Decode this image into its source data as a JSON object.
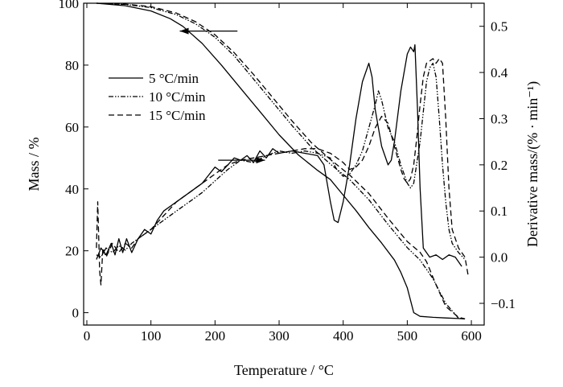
{
  "chart_data": {
    "type": "line",
    "xlabel": "Temperature / °C",
    "ylabel": "Mass / %",
    "y2label": "Derivative mass/(% · min⁻¹)",
    "xlim": [
      -5,
      620
    ],
    "ylim": [
      -4,
      100
    ],
    "y2lim": [
      -0.147,
      0.55
    ],
    "x_ticks": [
      "0",
      "100",
      "200",
      "300",
      "400",
      "500",
      "600"
    ],
    "y_ticks": [
      "0",
      "20",
      "40",
      "60",
      "80",
      "100"
    ],
    "y2_ticks": [
      "−0.1",
      "0.0",
      "0.1",
      "0.2",
      "0.3",
      "0.4",
      "0.5"
    ],
    "grid": false,
    "legend_position": "upper-left",
    "legend": [
      {
        "label": "5 °C/min",
        "style": "solid"
      },
      {
        "label": "10 °C/min",
        "style": "dashdotdot"
      },
      {
        "label": "15 °C/min",
        "style": "dashed"
      }
    ],
    "annotations": [
      {
        "axis": "left",
        "direction": "left",
        "from_x": 235,
        "to_x": 145,
        "y": 91
      },
      {
        "axis": "right",
        "direction": "right",
        "from_x": 205,
        "to_x": 278,
        "y2": 0.21
      }
    ],
    "series": [
      {
        "name": "5 °C/min",
        "kind": "mass",
        "axis": "left",
        "style": "solid",
        "x": [
          15,
          60,
          100,
          130,
          150,
          180,
          210,
          240,
          270,
          300,
          330,
          360,
          380,
          400,
          420,
          440,
          460,
          480,
          490,
          500,
          505,
          510,
          520,
          540,
          560,
          580,
          590
        ],
        "y": [
          100,
          99.2,
          97.5,
          95,
          92.5,
          87,
          80,
          72.5,
          65,
          57.5,
          51,
          46,
          43,
          38,
          33,
          27.5,
          22.5,
          17,
          13,
          8,
          4,
          0,
          -1.2,
          -1.5,
          -1.7,
          -1.9,
          -2
        ]
      },
      {
        "name": "10 °C/min",
        "kind": "mass",
        "axis": "left",
        "style": "dashdotdot",
        "x": [
          15,
          60,
          100,
          140,
          170,
          200,
          230,
          260,
          290,
          320,
          350,
          380,
          410,
          440,
          470,
          500,
          520,
          540,
          560,
          580,
          590
        ],
        "y": [
          100,
          99.6,
          98.6,
          96.3,
          93.3,
          89,
          83,
          75.5,
          68,
          60.5,
          53.5,
          48,
          43,
          36.5,
          28.5,
          21,
          17,
          11,
          3,
          -1.8,
          -2
        ]
      },
      {
        "name": "15 °C/min",
        "kind": "mass",
        "axis": "left",
        "style": "dashed",
        "x": [
          15,
          60,
          100,
          140,
          170,
          200,
          230,
          260,
          290,
          320,
          350,
          380,
          410,
          440,
          470,
          500,
          520,
          530,
          545,
          560,
          580,
          590
        ],
        "y": [
          100,
          99.7,
          98.9,
          96.8,
          94,
          89.8,
          84,
          77,
          69.5,
          62,
          55,
          49.5,
          44.5,
          38.5,
          30.5,
          23,
          19.5,
          16.5,
          9,
          2,
          -1.5,
          -2
        ]
      },
      {
        "name": "5 °C/min",
        "kind": "derivative",
        "axis": "right",
        "style": "solid",
        "x": [
          15,
          22,
          30,
          38,
          44,
          50,
          56,
          62,
          70,
          80,
          90,
          100,
          110,
          120,
          140,
          160,
          180,
          200,
          210,
          220,
          230,
          240,
          250,
          260,
          270,
          280,
          290,
          300,
          320,
          340,
          360,
          370,
          380,
          386,
          392,
          400,
          410,
          420,
          430,
          440,
          445,
          450,
          460,
          470,
          475,
          480,
          490,
          500,
          505,
          510,
          512,
          516,
          520,
          525,
          535,
          545,
          555,
          565,
          575,
          585
        ],
        "y": [
          -0.005,
          0.02,
          0.005,
          0.03,
          0.005,
          0.04,
          0.01,
          0.04,
          0.01,
          0.04,
          0.06,
          0.05,
          0.08,
          0.1,
          0.12,
          0.14,
          0.16,
          0.195,
          0.185,
          0.2,
          0.215,
          0.21,
          0.22,
          0.205,
          0.23,
          0.215,
          0.235,
          0.225,
          0.23,
          0.225,
          0.22,
          0.2,
          0.12,
          0.08,
          0.075,
          0.12,
          0.2,
          0.3,
          0.38,
          0.42,
          0.39,
          0.32,
          0.24,
          0.2,
          0.21,
          0.25,
          0.36,
          0.44,
          0.455,
          0.445,
          0.46,
          0.32,
          0.15,
          0.02,
          0.0,
          0.005,
          -0.005,
          0.005,
          0.0,
          -0.02
        ]
      },
      {
        "name": "10 °C/min",
        "kind": "derivative",
        "axis": "right",
        "style": "dashdotdot",
        "x": [
          15,
          22,
          30,
          40,
          50,
          60,
          70,
          80,
          100,
          120,
          140,
          160,
          180,
          200,
          220,
          240,
          260,
          280,
          300,
          320,
          340,
          360,
          380,
          390,
          400,
          410,
          420,
          430,
          440,
          450,
          455,
          460,
          470,
          480,
          490,
          500,
          505,
          510,
          520,
          530,
          535,
          540,
          545,
          550,
          555,
          560,
          565,
          570,
          580,
          590
        ],
        "y": [
          0.005,
          0.0,
          0.02,
          0.01,
          0.025,
          0.015,
          0.03,
          0.04,
          0.06,
          0.08,
          0.1,
          0.12,
          0.14,
          0.165,
          0.19,
          0.21,
          0.205,
          0.22,
          0.23,
          0.225,
          0.23,
          0.225,
          0.215,
          0.19,
          0.175,
          0.18,
          0.2,
          0.23,
          0.28,
          0.33,
          0.36,
          0.34,
          0.28,
          0.25,
          0.2,
          0.16,
          0.15,
          0.16,
          0.25,
          0.38,
          0.41,
          0.42,
          0.39,
          0.3,
          0.2,
          0.12,
          0.06,
          0.03,
          0.01,
          -0.005
        ]
      },
      {
        "name": "15 °C/min",
        "kind": "derivative",
        "axis": "right",
        "style": "dashed",
        "x": [
          15,
          17,
          20,
          22,
          25,
          30,
          40,
          50,
          60,
          70,
          80,
          100,
          120,
          140,
          160,
          180,
          200,
          220,
          240,
          260,
          280,
          300,
          320,
          340,
          360,
          380,
          400,
          410,
          420,
          430,
          440,
          450,
          460,
          470,
          480,
          490,
          495,
          500,
          505,
          510,
          515,
          520,
          525,
          530,
          540,
          545,
          550,
          555,
          560,
          565,
          570,
          580,
          590,
          595
        ],
        "y": [
          0.02,
          0.12,
          -0.03,
          -0.06,
          0.02,
          0.0,
          0.03,
          0.01,
          0.03,
          0.02,
          0.04,
          0.06,
          0.09,
          0.12,
          0.14,
          0.16,
          0.18,
          0.2,
          0.21,
          0.215,
          0.22,
          0.225,
          0.23,
          0.235,
          0.235,
          0.225,
          0.205,
          0.19,
          0.195,
          0.21,
          0.24,
          0.28,
          0.305,
          0.29,
          0.24,
          0.19,
          0.17,
          0.16,
          0.17,
          0.2,
          0.26,
          0.33,
          0.39,
          0.42,
          0.43,
          0.42,
          0.43,
          0.42,
          0.3,
          0.15,
          0.06,
          0.02,
          0.0,
          -0.04
        ]
      }
    ]
  }
}
